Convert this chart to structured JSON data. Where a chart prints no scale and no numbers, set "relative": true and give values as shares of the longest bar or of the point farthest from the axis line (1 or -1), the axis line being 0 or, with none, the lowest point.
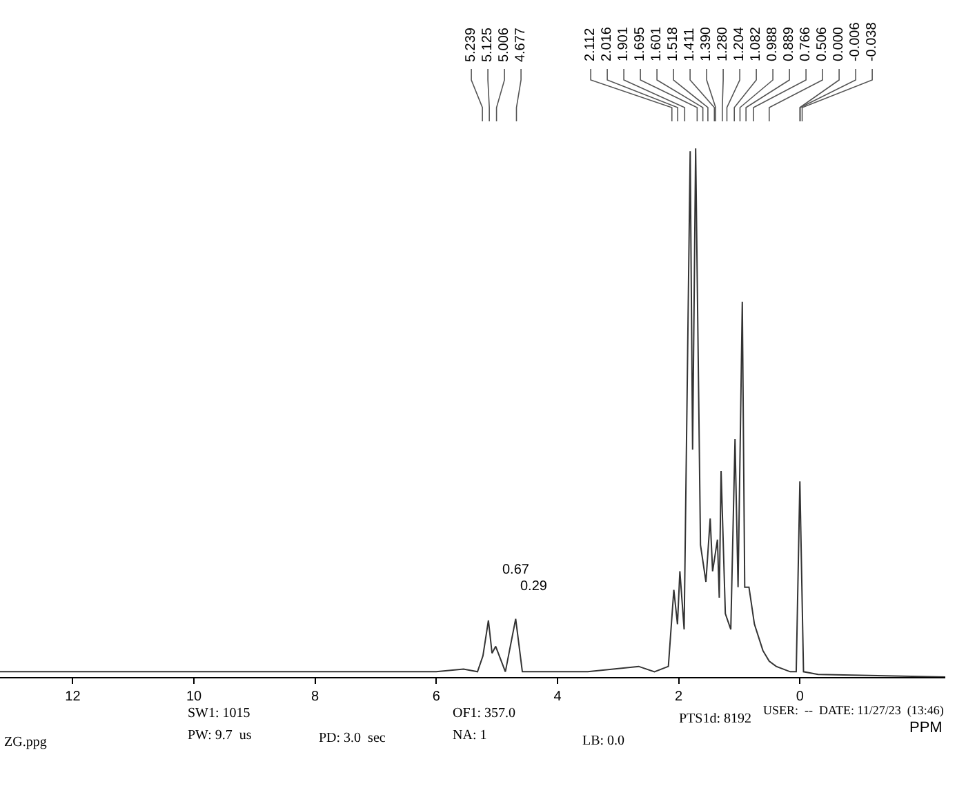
{
  "chart_data": {
    "type": "line",
    "relative": true,
    "xlabel": "PPM",
    "xlim": [
      13.2,
      -2.4
    ],
    "xticks": [
      12,
      10,
      8,
      6,
      4,
      2,
      0
    ],
    "marker": "none",
    "line_style": "solid",
    "x": [
      13.2,
      11,
      8,
      6,
      5.55,
      5.32,
      5.23,
      5.14,
      5.08,
      5.02,
      4.86,
      4.69,
      4.58,
      3.5,
      2.66,
      2.4,
      2.17,
      2.08,
      2.02,
      1.98,
      1.91,
      1.81,
      1.77,
      1.72,
      1.64,
      1.55,
      1.48,
      1.44,
      1.36,
      1.33,
      1.3,
      1.23,
      1.14,
      1.07,
      1.02,
      0.95,
      0.91,
      0.84,
      0.75,
      0.61,
      0.506,
      0.39,
      0.16,
      0.06,
      0.0,
      -0.06,
      -0.3,
      -2.4
    ],
    "series": [
      {
        "color": "#333333",
        "values": [
          0.01,
          0.01,
          0.01,
          0.01,
          0.015,
          0.01,
          0.04,
          0.107,
          0.045,
          0.058,
          0.01,
          0.11,
          0.01,
          0.01,
          0.02,
          0.01,
          0.02,
          0.165,
          0.1,
          0.2,
          0.09,
          0.995,
          0.43,
          1.0,
          0.25,
          0.18,
          0.3,
          0.2,
          0.26,
          0.15,
          0.39,
          0.12,
          0.09,
          0.45,
          0.17,
          0.71,
          0.17,
          0.17,
          0.1,
          0.05,
          0.03,
          0.02,
          0.01,
          0.01,
          0.37,
          0.01,
          0.005,
          0.0
        ]
      }
    ],
    "annotations": [
      {
        "text": "5.239",
        "x": 5.239
      },
      {
        "text": "5.125",
        "x": 5.125
      },
      {
        "text": "5.006",
        "x": 5.006
      },
      {
        "text": "4.677",
        "x": 4.677
      },
      {
        "text": "2.112",
        "x": 2.112
      },
      {
        "text": "2.016",
        "x": 2.016
      },
      {
        "text": "1.901",
        "x": 1.901
      },
      {
        "text": "1.695",
        "x": 1.695
      },
      {
        "text": "1.601",
        "x": 1.601
      },
      {
        "text": "1.518",
        "x": 1.518
      },
      {
        "text": "1.411",
        "x": 1.411
      },
      {
        "text": "1.390",
        "x": 1.39
      },
      {
        "text": "1.280",
        "x": 1.28
      },
      {
        "text": "1.204",
        "x": 1.204
      },
      {
        "text": "1.082",
        "x": 1.082
      },
      {
        "text": "0.988",
        "x": 0.988
      },
      {
        "text": "0.889",
        "x": 0.889
      },
      {
        "text": "0.766",
        "x": 0.766
      },
      {
        "text": "0.506",
        "x": 0.506
      },
      {
        "text": "0.000",
        "x": 0.0
      },
      {
        "text": "-0.006",
        "x": -0.006
      },
      {
        "text": "-0.038",
        "x": -0.038
      },
      "0.67",
      "0.29",
      "SW1: 1015",
      "PW: 9.7  us",
      "OF1: 357.0",
      "NA: 1",
      "PD: 3.0  sec",
      "LB: 0.0",
      "PTS1d: 8192",
      "USER:  --  DATE: 11/27/23  (13:46)",
      "ZG.ppg"
    ]
  }
}
